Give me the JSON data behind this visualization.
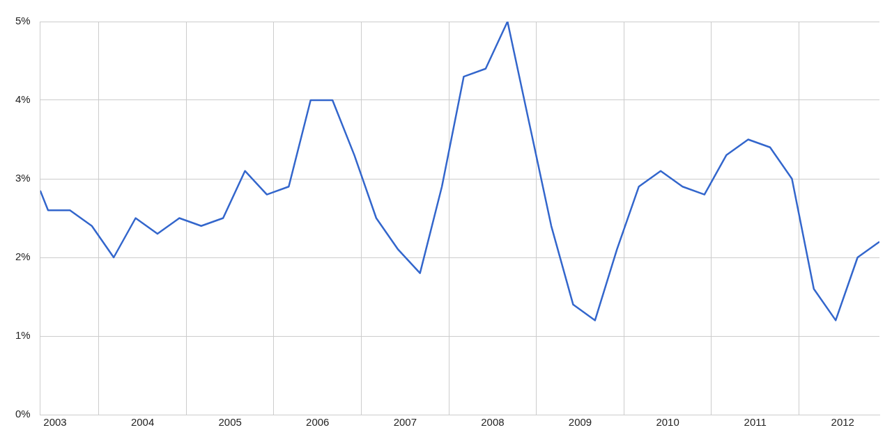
{
  "chart_data": {
    "type": "line",
    "x": [
      2003.33,
      2003.42,
      2003.67,
      2003.92,
      2004.17,
      2004.42,
      2004.67,
      2004.92,
      2005.17,
      2005.42,
      2005.67,
      2005.92,
      2006.17,
      2006.42,
      2006.67,
      2006.92,
      2007.17,
      2007.42,
      2007.67,
      2007.92,
      2008.17,
      2008.42,
      2008.67,
      2008.92,
      2009.17,
      2009.42,
      2009.67,
      2009.92,
      2010.17,
      2010.42,
      2010.67,
      2010.92,
      2011.17,
      2011.42,
      2011.67,
      2011.92,
      2012.17,
      2012.42,
      2012.67,
      2012.92
    ],
    "series": [
      {
        "color": "#3366cc",
        "values": [
          2.85,
          2.6,
          2.6,
          2.4,
          2.0,
          2.5,
          2.3,
          2.5,
          2.4,
          2.5,
          3.1,
          2.8,
          2.9,
          4.0,
          4.0,
          3.3,
          2.5,
          2.1,
          1.8,
          2.9,
          4.3,
          4.4,
          5.0,
          3.7,
          2.4,
          1.4,
          1.2,
          2.1,
          2.9,
          3.1,
          2.9,
          2.8,
          3.3,
          3.5,
          3.4,
          3.0,
          1.6,
          1.2,
          2.0,
          2.2
        ]
      }
    ],
    "xlim": [
      2003.33,
      2012.92
    ],
    "xticks": [
      {
        "value": 2003.5,
        "label": "2003"
      },
      {
        "value": 2004,
        "label": null
      },
      {
        "value": 2004.5,
        "label": "2004"
      },
      {
        "value": 2005,
        "label": null
      },
      {
        "value": 2005.5,
        "label": "2005"
      },
      {
        "value": 2006,
        "label": null
      },
      {
        "value": 2006.5,
        "label": "2006"
      },
      {
        "value": 2007,
        "label": null
      },
      {
        "value": 2007.5,
        "label": "2007"
      },
      {
        "value": 2008,
        "label": null
      },
      {
        "value": 2008.5,
        "label": "2008"
      },
      {
        "value": 2009,
        "label": null
      },
      {
        "value": 2009.5,
        "label": "2009"
      },
      {
        "value": 2010,
        "label": null
      },
      {
        "value": 2010.5,
        "label": "2010"
      },
      {
        "value": 2011,
        "label": null
      },
      {
        "value": 2011.5,
        "label": "2011"
      },
      {
        "value": 2012,
        "label": null
      },
      {
        "value": 2012.5,
        "label": "2012"
      }
    ],
    "ylim": [
      0,
      5
    ],
    "yticks": [
      {
        "value": 0,
        "label": "0%"
      },
      {
        "value": 1,
        "label": "1%"
      },
      {
        "value": 2,
        "label": "2%"
      },
      {
        "value": 3,
        "label": "3%"
      },
      {
        "value": 4,
        "label": "4%"
      },
      {
        "value": 5,
        "label": "5%"
      }
    ],
    "grid": true,
    "legend": false,
    "marker": "none",
    "line_style": "solid"
  }
}
